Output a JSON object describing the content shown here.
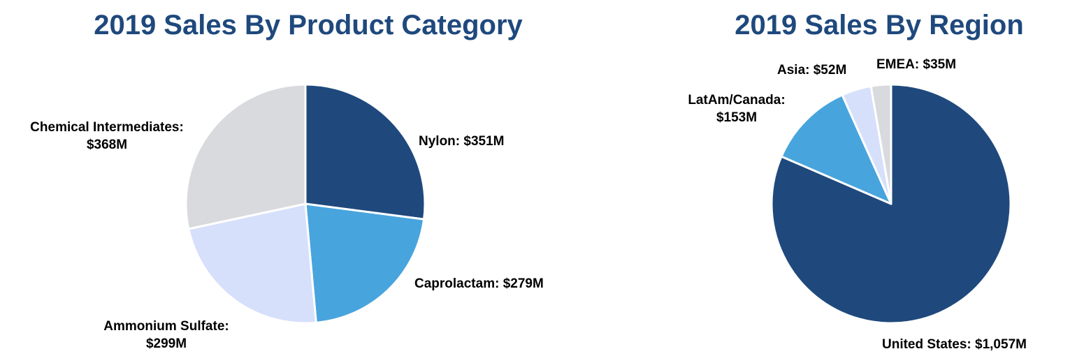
{
  "chart_data": [
    {
      "type": "pie",
      "title": "2019 Sales By Product Category",
      "unit": "$M",
      "start": "12 o'clock, clockwise",
      "slices": [
        {
          "name": "Nylon",
          "value": 351,
          "label": [
            "Nylon: $351M"
          ],
          "color": "#1f497d"
        },
        {
          "name": "Caprolactam",
          "value": 279,
          "label": [
            "Caprolactam: $279M"
          ],
          "color": "#48a4dd"
        },
        {
          "name": "Ammonium Sulfate",
          "value": 299,
          "label": [
            "Ammonium Sulfate:",
            "$299M"
          ],
          "color": "#d6e0fb"
        },
        {
          "name": "Chemical Intermediates",
          "value": 368,
          "label": [
            "Chemical Intermediates:",
            "$368M"
          ],
          "color": "#d9dadd"
        }
      ]
    },
    {
      "type": "pie",
      "title": "2019 Sales By Region",
      "unit": "$M",
      "start": "12 o'clock, clockwise",
      "slices": [
        {
          "name": "United States",
          "value": 1057,
          "label": [
            "United States: $1,057M"
          ],
          "color": "#1f497d"
        },
        {
          "name": "LatAm/Canada",
          "value": 153,
          "label": [
            "LatAm/Canada:",
            "$153M"
          ],
          "color": "#48a4dd"
        },
        {
          "name": "Asia",
          "value": 52,
          "label": [
            "Asia: $52M"
          ],
          "color": "#d6e0fb"
        },
        {
          "name": "EMEA",
          "value": 35,
          "label": [
            "EMEA: $35M"
          ],
          "color": "#d9dadd"
        }
      ]
    }
  ]
}
